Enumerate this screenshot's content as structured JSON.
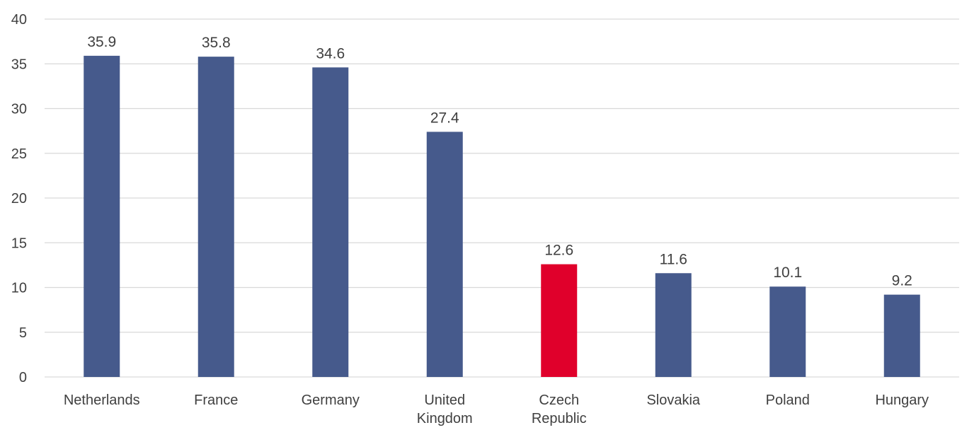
{
  "chart_data": {
    "type": "bar",
    "categories": [
      "Netherlands",
      "France",
      "Germany",
      "United Kingdom",
      "Czech Republic",
      "Slovakia",
      "Poland",
      "Hungary"
    ],
    "category_lines": [
      [
        "Netherlands"
      ],
      [
        "France"
      ],
      [
        "Germany"
      ],
      [
        "United",
        "Kingdom"
      ],
      [
        "Czech",
        "Republic"
      ],
      [
        "Slovakia"
      ],
      [
        "Poland"
      ],
      [
        "Hungary"
      ]
    ],
    "values": [
      35.9,
      35.8,
      34.6,
      27.4,
      12.6,
      11.6,
      10.1,
      9.2
    ],
    "data_labels": [
      "35.9",
      "35.8",
      "34.6",
      "27.4",
      "12.6",
      "11.6",
      "10.1",
      "9.2"
    ],
    "yticks": [
      0,
      5,
      10,
      15,
      20,
      25,
      30,
      35,
      40
    ],
    "ylim": [
      0,
      40
    ],
    "grid": true,
    "legend": "none",
    "colors": {
      "default": "#465a8c",
      "highlight": "#e0002b"
    },
    "highlight_category": "Czech Republic",
    "title": "",
    "xlabel": "",
    "ylabel": ""
  }
}
